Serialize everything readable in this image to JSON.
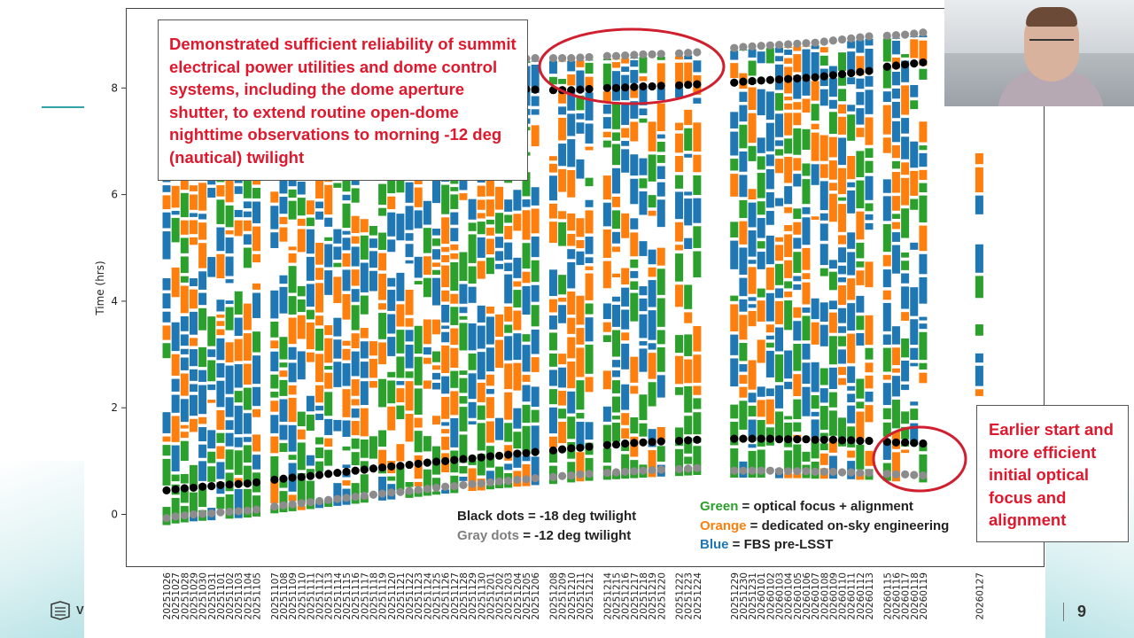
{
  "slide": {
    "page_number": "9",
    "logo_letter": "V"
  },
  "callouts": {
    "top": "Demonstrated sufficient reliability of summit electrical power utilities and dome control systems, including the dome aperture shutter, to extend routine open-dome nighttime observations to morning -12 deg (nautical) twilight",
    "right": "Earlier start and more efficient initial optical focus and alignment"
  },
  "legend": {
    "black_key": "Black dots",
    "black_text": " = -18 deg twilight",
    "gray_key": "Gray dots",
    "gray_text": " = -12 deg twilight",
    "green_key": "Green",
    "green_text": " = optical focus + alignment",
    "orange_key": "Orange",
    "orange_text": " = dedicated on-sky engineering",
    "blue_key": "Blue",
    "blue_text": " = FBS pre-LSST"
  },
  "colors": {
    "green": "#2ca02c",
    "orange": "#ff7f0e",
    "blue": "#1f77b4",
    "black_dot": "#000000",
    "gray_dot": "#8c8c8c",
    "callout_text": "#e0182d",
    "accent": "#2fa3a8"
  },
  "chart_data": {
    "type": "bar",
    "ylabel": "Time (hrs)",
    "ylim": [
      -1,
      9.3
    ],
    "yticks": [
      "0",
      "2",
      "4",
      "6",
      "8"
    ],
    "categories": [
      "20251026",
      "20251027",
      "20251028",
      "20251029",
      "20251030",
      "20251031",
      "20251101",
      "20251102",
      "20251103",
      "20251104",
      "20251105",
      "20251107",
      "20251108",
      "20251109",
      "20251110",
      "20251111",
      "20251112",
      "20251113",
      "20251114",
      "20251115",
      "20251116",
      "20251117",
      "20251118",
      "20251119",
      "20251120",
      "20251121",
      "20251122",
      "20251123",
      "20251124",
      "20251125",
      "20251126",
      "20251127",
      "20251128",
      "20251129",
      "20251130",
      "20251201",
      "20251202",
      "20251203",
      "20251204",
      "20251205",
      "20251206",
      "20251208",
      "20251209",
      "20251210",
      "20251211",
      "20251212",
      "20251214",
      "20251215",
      "20251216",
      "20251217",
      "20251218",
      "20251219",
      "20251220",
      "20251222",
      "20251223",
      "20251224",
      "20251229",
      "20251230",
      "20251231",
      "20260101",
      "20260102",
      "20260103",
      "20260104",
      "20260105",
      "20260106",
      "20260107",
      "20260108",
      "20260109",
      "20260110",
      "20260111",
      "20260112",
      "20260113",
      "20260115",
      "20260116",
      "20260117",
      "20260118",
      "20260119",
      "20260127"
    ],
    "twilight_18_evening": [
      0.45,
      0.47,
      0.49,
      0.5,
      0.52,
      0.53,
      0.55,
      0.56,
      0.57,
      0.58,
      0.6,
      0.65,
      0.67,
      0.69,
      0.7,
      0.72,
      0.74,
      0.76,
      0.78,
      0.8,
      0.82,
      0.84,
      0.86,
      0.88,
      0.9,
      0.91,
      0.93,
      0.95,
      0.97,
      0.99,
      1.0,
      1.02,
      1.04,
      1.05,
      1.07,
      1.09,
      1.1,
      1.12,
      1.14,
      1.15,
      1.17,
      1.2,
      1.22,
      1.24,
      1.25,
      1.27,
      1.3,
      1.31,
      1.33,
      1.34,
      1.35,
      1.36,
      1.37,
      1.38,
      1.39,
      1.4,
      1.42,
      1.42,
      1.42,
      1.42,
      1.42,
      1.41,
      1.41,
      1.41,
      1.41,
      1.4,
      1.4,
      1.4,
      1.39,
      1.39,
      1.38,
      1.38,
      1.36,
      1.35,
      1.35,
      1.34,
      1.33,
      null
    ],
    "twilight_12_evening": [
      -0.07,
      -0.04,
      -0.02,
      0.0,
      0.01,
      0.02,
      0.04,
      0.05,
      0.06,
      0.07,
      0.09,
      0.15,
      0.17,
      0.19,
      0.21,
      0.23,
      0.25,
      0.27,
      0.29,
      0.31,
      0.33,
      0.35,
      0.37,
      0.39,
      0.41,
      0.42,
      0.44,
      0.46,
      0.48,
      0.5,
      0.52,
      0.53,
      0.55,
      0.57,
      0.58,
      0.6,
      0.62,
      0.63,
      0.65,
      0.66,
      0.68,
      0.7,
      0.72,
      0.73,
      0.75,
      0.76,
      0.78,
      0.79,
      0.8,
      0.81,
      0.82,
      0.83,
      0.84,
      0.85,
      0.86,
      0.87,
      0.82,
      0.82,
      0.82,
      0.82,
      0.82,
      0.81,
      0.81,
      0.81,
      0.81,
      0.8,
      0.8,
      0.8,
      0.79,
      0.79,
      0.78,
      0.78,
      0.76,
      0.75,
      0.75,
      0.74,
      0.73,
      null
    ],
    "twilight_18_morning": [
      null,
      null,
      null,
      null,
      null,
      null,
      null,
      null,
      null,
      null,
      null,
      null,
      null,
      null,
      null,
      null,
      null,
      null,
      null,
      null,
      null,
      null,
      null,
      null,
      null,
      null,
      null,
      null,
      null,
      null,
      null,
      null,
      null,
      null,
      null,
      null,
      null,
      null,
      8.0,
      7.98,
      7.97,
      7.96,
      7.96,
      7.96,
      7.97,
      7.98,
      8.0,
      8.0,
      8.01,
      8.02,
      8.03,
      8.03,
      8.04,
      8.05,
      8.06,
      8.07,
      8.1,
      8.12,
      8.13,
      8.14,
      8.15,
      8.16,
      8.17,
      8.18,
      8.19,
      8.2,
      8.22,
      8.24,
      8.26,
      8.28,
      8.3,
      8.32,
      8.4,
      8.42,
      8.44,
      8.46,
      8.48,
      null
    ],
    "twilight_12_morning": [
      null,
      null,
      null,
      null,
      null,
      null,
      null,
      null,
      null,
      null,
      null,
      null,
      null,
      null,
      null,
      null,
      null,
      null,
      null,
      null,
      null,
      null,
      null,
      null,
      null,
      null,
      null,
      null,
      null,
      null,
      null,
      null,
      null,
      null,
      null,
      null,
      null,
      null,
      8.55,
      8.55,
      8.56,
      8.56,
      8.56,
      8.56,
      8.57,
      8.58,
      8.6,
      8.6,
      8.61,
      8.62,
      8.63,
      8.63,
      8.64,
      8.65,
      8.66,
      8.67,
      8.75,
      8.77,
      8.78,
      8.79,
      8.8,
      8.81,
      8.82,
      8.83,
      8.84,
      8.85,
      8.87,
      8.89,
      8.91,
      8.93,
      8.95,
      8.97,
      8.98,
      8.99,
      9.0,
      9.02,
      9.04,
      null
    ]
  }
}
